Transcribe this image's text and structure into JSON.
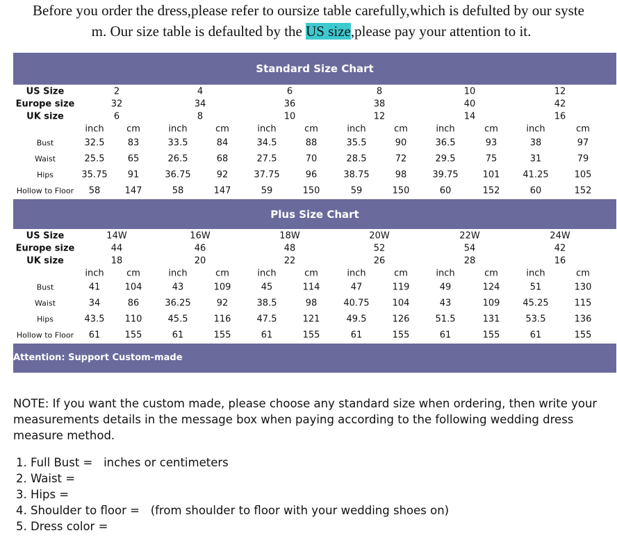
{
  "intro": {
    "line1": "Before you order the dress,please refer to oursize table carefully,which is defulted by our syste",
    "line2_pre": "m. Our size table is defaulted by the ",
    "line2_hl": "US size",
    "line2_post": ",please pay your attention to it."
  },
  "colors": {
    "band": "#6a6a9c",
    "highlight": "#3cc9cf"
  },
  "charts": [
    {
      "title": "Standard Size Chart",
      "header_labels": [
        "US Size",
        "Europe size",
        "UK size"
      ],
      "us": [
        "2",
        "4",
        "6",
        "8",
        "10",
        "12"
      ],
      "eu": [
        "32",
        "34",
        "36",
        "38",
        "40",
        "42"
      ],
      "uk": [
        "6",
        "8",
        "10",
        "12",
        "14",
        "16"
      ],
      "units": [
        "inch",
        "cm"
      ],
      "rows": [
        {
          "label": "Bust",
          "values": [
            "32.5",
            "83",
            "33.5",
            "84",
            "34.5",
            "88",
            "35.5",
            "90",
            "36.5",
            "93",
            "38",
            "97"
          ]
        },
        {
          "label": "Waist",
          "values": [
            "25.5",
            "65",
            "26.5",
            "68",
            "27.5",
            "70",
            "28.5",
            "72",
            "29.5",
            "75",
            "31",
            "79"
          ]
        },
        {
          "label": "Hips",
          "values": [
            "35.75",
            "91",
            "36.75",
            "92",
            "37.75",
            "96",
            "38.75",
            "98",
            "39.75",
            "101",
            "41.25",
            "105"
          ]
        },
        {
          "label": "Hollow to Floor",
          "values": [
            "58",
            "147",
            "58",
            "147",
            "59",
            "150",
            "59",
            "150",
            "60",
            "152",
            "60",
            "152"
          ]
        }
      ]
    },
    {
      "title": "Plus Size Chart",
      "header_labels": [
        "US Size",
        "Europe size",
        "UK size"
      ],
      "us": [
        "14W",
        "16W",
        "18W",
        "20W",
        "22W",
        "24W"
      ],
      "eu": [
        "44",
        "46",
        "48",
        "52",
        "54",
        "42"
      ],
      "uk": [
        "18",
        "20",
        "22",
        "26",
        "28",
        "16"
      ],
      "units": [
        "inch",
        "cm"
      ],
      "rows": [
        {
          "label": "Bust",
          "values": [
            "41",
            "104",
            "43",
            "109",
            "45",
            "114",
            "47",
            "119",
            "49",
            "124",
            "51",
            "130"
          ]
        },
        {
          "label": "Waist",
          "values": [
            "34",
            "86",
            "36.25",
            "92",
            "38.5",
            "98",
            "40.75",
            "104",
            "43",
            "109",
            "45.25",
            "115"
          ]
        },
        {
          "label": "Hips",
          "values": [
            "43.5",
            "110",
            "45.5",
            "116",
            "47.5",
            "121",
            "49.5",
            "126",
            "51.5",
            "131",
            "53.5",
            "136"
          ]
        },
        {
          "label": "Hollow to Floor",
          "values": [
            "61",
            "155",
            "61",
            "155",
            "61",
            "155",
            "61",
            "155",
            "61",
            "155",
            "61",
            "155"
          ]
        }
      ]
    }
  ],
  "attention": "Attention: Support Custom-made",
  "note": "NOTE: If you want the custom made, please choose any standard size when ordering, then write your measurements details in the message box when paying according to the following wedding dress measure method.",
  "list": [
    "1. Full Bust =   inches or centimeters",
    "2. Waist =",
    "3. Hips =",
    "4. Shoulder to floor =   (from shoulder to floor with your wedding shoes on)",
    "5. Dress color ="
  ]
}
